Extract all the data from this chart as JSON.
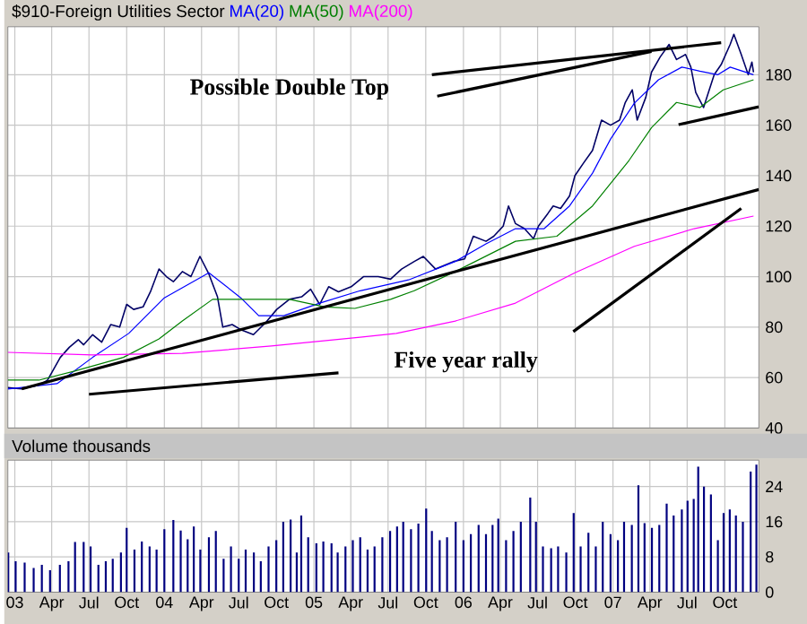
{
  "chart_data": [
    {
      "type": "line",
      "title": "$910-Foreign Utilities Sector",
      "legend": "top left",
      "grid": true,
      "tick_labels": "y",
      "xlim": [
        "2002-12-15",
        "2007-12-23"
      ],
      "xticks": [
        {
          "value": "2003-01-01",
          "label": null
        },
        {
          "value": "2003-04-01",
          "label": null
        },
        {
          "value": "2003-07-01",
          "label": null
        },
        {
          "value": "2003-10-01",
          "label": null
        },
        {
          "value": "2004-01-01",
          "label": null
        },
        {
          "value": "2004-04-01",
          "label": null
        },
        {
          "value": "2004-07-01",
          "label": null
        },
        {
          "value": "2004-10-01",
          "label": null
        },
        {
          "value": "2005-01-01",
          "label": null
        },
        {
          "value": "2005-04-01",
          "label": null
        },
        {
          "value": "2005-07-01",
          "label": null
        },
        {
          "value": "2005-10-01",
          "label": null
        },
        {
          "value": "2006-01-01",
          "label": null
        },
        {
          "value": "2006-04-01",
          "label": null
        },
        {
          "value": "2006-07-01",
          "label": null
        },
        {
          "value": "2006-10-01",
          "label": null
        },
        {
          "value": "2007-01-01",
          "label": null
        },
        {
          "value": "2007-04-01",
          "label": null
        },
        {
          "value": "2007-07-01",
          "label": null
        },
        {
          "value": "2007-10-01",
          "label": null
        }
      ],
      "ylim": [
        40,
        199
      ],
      "yticks": [
        40,
        60,
        80,
        100,
        120,
        140,
        160,
        180
      ],
      "series": [
        {
          "color": "#000066",
          "x": [
            "2002-12-15",
            "2003-01-18",
            "2003-03-01",
            "2003-03-22",
            "2003-04-22",
            "2003-05-14",
            "2003-06-05",
            "2003-06-18",
            "2003-07-10",
            "2003-08-01",
            "2003-08-23",
            "2003-09-14",
            "2003-10-01",
            "2003-10-18",
            "2003-11-10",
            "2003-11-28",
            "2003-12-19",
            "2004-01-06",
            "2004-01-23",
            "2004-02-14",
            "2004-03-06",
            "2004-03-28",
            "2004-04-19",
            "2004-05-10",
            "2004-05-23",
            "2004-06-15",
            "2004-07-06",
            "2004-08-06",
            "2004-09-06",
            "2004-10-02",
            "2004-11-02",
            "2004-12-02",
            "2004-12-24",
            "2005-01-15",
            "2005-02-06",
            "2005-03-02",
            "2005-04-02",
            "2005-05-02",
            "2005-06-07",
            "2005-07-07",
            "2005-08-03",
            "2005-09-03",
            "2005-09-25",
            "2005-10-25",
            "2005-12-08",
            "2006-01-04",
            "2006-01-25",
            "2006-02-25",
            "2006-03-16",
            "2006-04-08",
            "2006-04-21",
            "2006-05-08",
            "2006-05-30",
            "2006-06-21",
            "2006-07-03",
            "2006-07-26",
            "2006-08-08",
            "2006-08-26",
            "2006-09-17",
            "2006-09-30",
            "2006-10-21",
            "2006-11-12",
            "2006-12-04",
            "2006-12-26",
            "2007-01-17",
            "2007-01-31",
            "2007-02-17",
            "2007-03-01",
            "2007-03-22",
            "2007-04-05",
            "2007-04-26",
            "2007-05-18",
            "2007-06-05",
            "2007-06-27",
            "2007-07-10",
            "2007-07-22",
            "2007-08-10",
            "2007-08-22",
            "2007-09-05",
            "2007-09-22",
            "2007-10-14",
            "2007-10-23",
            "2007-11-10",
            "2007-11-27",
            "2007-12-06",
            "2007-12-10"
          ],
          "values": [
            56,
            55.5,
            57,
            59,
            68,
            72,
            75,
            73,
            77,
            74,
            81,
            80,
            89,
            87,
            88,
            94,
            103,
            100,
            98,
            102,
            100,
            108,
            101,
            92,
            80,
            81,
            79,
            77,
            82,
            87,
            91,
            92,
            95,
            89,
            96,
            94,
            96,
            100,
            100,
            99,
            103,
            106,
            108,
            103,
            106,
            107,
            116,
            114,
            116,
            120,
            128,
            121,
            119,
            115,
            120,
            125,
            128,
            127,
            132,
            140,
            145,
            150,
            162,
            160,
            162,
            169,
            174,
            162,
            171,
            181,
            187,
            192,
            186,
            188,
            183,
            173,
            167,
            173,
            180,
            184,
            192,
            196,
            188,
            180,
            185,
            181
          ]
        },
        {
          "name": "MA(20)",
          "color": "#0000ff",
          "x": [
            "2002-12-15",
            "2003-04-14",
            "2003-07-10",
            "2003-10-06",
            "2004-01-01",
            "2004-04-19",
            "2004-07-06",
            "2004-08-19",
            "2004-10-19",
            "2005-01-15",
            "2005-04-24",
            "2005-08-20",
            "2005-12-12",
            "2006-02-25",
            "2006-05-08",
            "2006-07-17",
            "2006-09-17",
            "2006-11-12",
            "2006-12-26",
            "2007-02-22",
            "2007-04-22",
            "2007-06-18",
            "2007-08-01",
            "2007-09-14",
            "2007-10-14",
            "2007-12-10"
          ],
          "values": [
            55.5,
            57.6,
            68,
            77.5,
            91.6,
            101.5,
            91.6,
            84.5,
            84.5,
            89.5,
            94.4,
            98.7,
            106,
            113,
            119,
            119,
            128,
            141,
            154.5,
            168.7,
            178,
            183,
            181.4,
            180,
            183,
            180
          ]
        },
        {
          "name": "MA(50)",
          "color": "#008000",
          "x": [
            "2002-12-15",
            "2003-03-01",
            "2003-05-27",
            "2003-09-23",
            "2003-12-19",
            "2004-02-14",
            "2004-04-28",
            "2004-07-06",
            "2004-11-02",
            "2005-01-28",
            "2005-04-11",
            "2005-07-07",
            "2005-09-03",
            "2005-12-12",
            "2006-05-08",
            "2006-08-17",
            "2006-11-12",
            "2007-02-09",
            "2007-04-05",
            "2007-06-05",
            "2007-08-01",
            "2007-09-27",
            "2007-12-10"
          ],
          "values": [
            59,
            59,
            62.6,
            68,
            75.3,
            82.4,
            91,
            91,
            91,
            88,
            87.4,
            91,
            94.4,
            102,
            114,
            116,
            128,
            146,
            159,
            169,
            167,
            174,
            178
          ]
        },
        {
          "name": "MA(200)",
          "color": "#ff00ff",
          "x": [
            "2002-12-15",
            "2003-07-10",
            "2004-02-14",
            "2004-09-19",
            "2005-04-24",
            "2005-07-21",
            "2005-12-12",
            "2006-05-08",
            "2006-09-30",
            "2007-02-22",
            "2007-07-18",
            "2007-12-10"
          ],
          "values": [
            70,
            69,
            69.6,
            72.5,
            76,
            77.5,
            82.4,
            89.5,
            101.5,
            112,
            119,
            124
          ]
        },
        {
          "type": "line",
          "color": "#000000",
          "x": [
            "2003-01-18",
            "2007-12-23"
          ],
          "values": [
            55.5,
            134.5
          ]
        },
        {
          "type": "line",
          "color": "#000000",
          "x": [
            "2007-06-10",
            "2007-12-23"
          ],
          "values": [
            160.2,
            167.3
          ]
        },
        {
          "type": "line",
          "color": "#000000",
          "x": [
            "2005-10-16",
            "2007-09-22"
          ],
          "values": [
            180,
            192.7
          ]
        },
        {
          "type": "line",
          "color": "#000000",
          "x": [
            "2005-10-29",
            "2007-04-05"
          ],
          "values": [
            171.5,
            189.2
          ]
        },
        {
          "type": "line",
          "color": "#000000",
          "x": [
            "2003-07-01",
            "2005-03-02"
          ],
          "values": [
            53.4,
            61.9
          ]
        },
        {
          "type": "line",
          "color": "#000000",
          "x": [
            "2006-09-26",
            "2007-11-10"
          ],
          "values": [
            78.2,
            127
          ]
        }
      ],
      "annotations": [
        "Possible Double Top",
        "Five year rally"
      ]
    },
    {
      "type": "bar",
      "title": "Volume thousands",
      "grid": true,
      "color": "#000080",
      "xlim": [
        "2002-12-15",
        "2007-12-23"
      ],
      "xticks": [
        {
          "value": "2003-01-01",
          "label": "03"
        },
        {
          "value": "2003-04-01",
          "label": "Apr"
        },
        {
          "value": "2003-07-01",
          "label": "Jul"
        },
        {
          "value": "2003-10-01",
          "label": "Oct"
        },
        {
          "value": "2004-01-01",
          "label": "04"
        },
        {
          "value": "2004-04-01",
          "label": "Apr"
        },
        {
          "value": "2004-07-01",
          "label": "Jul"
        },
        {
          "value": "2004-10-01",
          "label": "Oct"
        },
        {
          "value": "2005-01-01",
          "label": "05"
        },
        {
          "value": "2005-04-01",
          "label": "Apr"
        },
        {
          "value": "2005-07-01",
          "label": "Jul"
        },
        {
          "value": "2005-10-01",
          "label": "Oct"
        },
        {
          "value": "2006-01-01",
          "label": "06"
        },
        {
          "value": "2006-04-01",
          "label": "Apr"
        },
        {
          "value": "2006-07-01",
          "label": "Jul"
        },
        {
          "value": "2006-10-01",
          "label": "Oct"
        },
        {
          "value": "2007-01-01",
          "label": "07"
        },
        {
          "value": "2007-04-01",
          "label": "Apr"
        },
        {
          "value": "2007-07-01",
          "label": "Jul"
        },
        {
          "value": "2007-10-01",
          "label": "Oct"
        }
      ],
      "ylim": [
        0,
        30
      ],
      "yticks": [
        0,
        8,
        16,
        24
      ],
      "x": [
        "2002-12-16",
        "2003-01-03",
        "2003-01-25",
        "2003-02-16",
        "2003-03-08",
        "2003-03-28",
        "2003-04-21",
        "2003-05-12",
        "2003-05-28",
        "2003-06-18",
        "2003-07-05",
        "2003-07-24",
        "2003-08-11",
        "2003-08-28",
        "2003-09-17",
        "2003-10-01",
        "2003-10-20",
        "2003-11-07",
        "2003-11-26",
        "2003-12-13",
        "2004-01-01",
        "2004-01-23",
        "2004-02-10",
        "2004-02-27",
        "2004-03-13",
        "2004-03-29",
        "2004-04-19",
        "2004-05-06",
        "2004-05-25",
        "2004-06-12",
        "2004-07-01",
        "2004-07-18",
        "2004-08-07",
        "2004-08-24",
        "2004-09-12",
        "2004-10-01",
        "2004-10-18",
        "2004-11-05",
        "2004-11-20",
        "2004-12-01",
        "2004-12-18",
        "2005-01-07",
        "2005-01-24",
        "2005-02-13",
        "2005-02-28",
        "2005-03-19",
        "2005-04-06",
        "2005-04-24",
        "2005-05-12",
        "2005-05-29",
        "2005-06-17",
        "2005-07-06",
        "2005-07-23",
        "2005-08-07",
        "2005-08-26",
        "2005-09-13",
        "2005-10-02",
        "2005-10-16",
        "2005-11-04",
        "2005-11-22",
        "2005-12-13",
        "2006-01-01",
        "2006-01-19",
        "2006-02-07",
        "2006-02-25",
        "2006-03-13",
        "2006-03-27",
        "2006-04-15",
        "2006-05-03",
        "2006-05-21",
        "2006-06-13",
        "2006-06-27",
        "2006-07-14",
        "2006-08-03",
        "2006-08-20",
        "2006-09-09",
        "2006-09-27",
        "2006-10-14",
        "2006-11-02",
        "2006-11-20",
        "2006-12-07",
        "2006-12-26",
        "2007-01-13",
        "2007-01-28",
        "2007-02-16",
        "2007-03-04",
        "2007-03-19",
        "2007-04-06",
        "2007-04-24",
        "2007-05-12",
        "2007-05-29",
        "2007-06-18",
        "2007-07-02",
        "2007-07-17",
        "2007-07-28",
        "2007-08-11",
        "2007-08-28",
        "2007-09-14",
        "2007-09-28",
        "2007-10-13",
        "2007-10-28",
        "2007-11-14",
        "2007-12-03",
        "2007-12-17"
      ],
      "values": [
        9,
        7,
        6.7,
        5.5,
        6.2,
        5,
        6.2,
        7,
        11.4,
        11.4,
        10.4,
        6.2,
        7,
        7.6,
        9,
        14.6,
        9.7,
        11.5,
        10.4,
        9.7,
        14.3,
        16.4,
        14,
        12,
        14.9,
        9.7,
        12.5,
        13.9,
        7.6,
        10.4,
        7.6,
        9.7,
        9,
        7,
        10.4,
        11.8,
        16,
        16.5,
        9,
        17.4,
        12.5,
        11.1,
        11.5,
        11.1,
        9,
        10.4,
        11.8,
        12.5,
        9.7,
        10.4,
        12.5,
        13.9,
        14.9,
        16,
        14.3,
        15.6,
        19,
        13.9,
        11.8,
        12.5,
        16,
        11.8,
        13.2,
        15.3,
        13.2,
        15.3,
        16.7,
        11.8,
        13.9,
        16,
        21.5,
        16,
        10.4,
        10,
        10.4,
        9,
        18,
        10.4,
        13.5,
        10.4,
        16,
        13.2,
        11.8,
        16,
        15.3,
        24.3,
        15.7,
        14.6,
        15.3,
        20.1,
        17.4,
        18.8,
        20.8,
        21.2,
        28.5,
        24,
        22.2,
        11.8,
        18,
        18.8,
        17.4,
        16,
        27.4,
        29
      ]
    }
  ]
}
